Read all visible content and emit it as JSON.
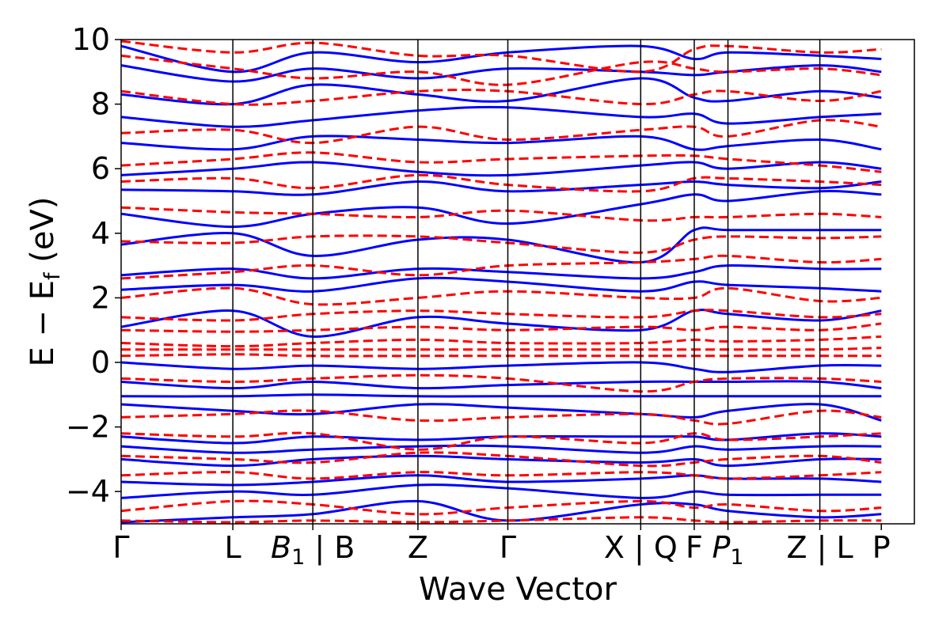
{
  "chart_data": {
    "type": "line",
    "xlabel": "Wave Vector",
    "ylabel_main": "E − E",
    "ylabel_sub": "f",
    "ylabel_unit": " (eV)",
    "ylim": [
      -5,
      10
    ],
    "xlim": [
      0,
      12.0
    ],
    "yticks": [
      -4,
      -2,
      0,
      2,
      4,
      6,
      8,
      10
    ],
    "ytick_labels": [
      "−4",
      "−2",
      "0",
      "2",
      "4",
      "6",
      "8",
      "10"
    ],
    "grid": false,
    "colors": {
      "solid": "#0000ff",
      "dashed": "#ff0000"
    },
    "kpoints": [
      {
        "pos": 0.0,
        "label": "Γ",
        "italic_base": "",
        "sub": ""
      },
      {
        "pos": 1.69,
        "label": "L",
        "italic_base": "",
        "sub": ""
      },
      {
        "pos": 2.9,
        "label": " | B",
        "italic_base": "B",
        "sub": "1"
      },
      {
        "pos": 4.49,
        "label": "Z",
        "italic_base": "",
        "sub": ""
      },
      {
        "pos": 5.85,
        "label": "Γ",
        "italic_base": "",
        "sub": ""
      },
      {
        "pos": 7.86,
        "label": "X | Q",
        "italic_base": "",
        "sub": ""
      },
      {
        "pos": 8.67,
        "label": "F",
        "italic_base": "",
        "sub": ""
      },
      {
        "pos": 9.18,
        "label": "",
        "italic_base": "P",
        "sub": "1"
      },
      {
        "pos": 10.57,
        "label": "Z | L",
        "italic_base": "",
        "sub": ""
      },
      {
        "pos": 11.5,
        "label": "P",
        "italic_base": "",
        "sub": ""
      }
    ],
    "series": [
      {
        "style": "solid",
        "x": [
          0,
          1.69,
          2.9,
          4.49,
          5.85,
          7.86,
          8.67,
          9.18,
          10.57,
          11.5
        ],
        "y": [
          9.8,
          9.0,
          9.6,
          9.3,
          9.6,
          9.8,
          9.4,
          9.6,
          9.5,
          9.4
        ]
      },
      {
        "style": "solid",
        "x": [
          0,
          1.69,
          2.9,
          4.49,
          5.85,
          7.86,
          8.67,
          9.18,
          10.57,
          11.5
        ],
        "y": [
          9.2,
          8.7,
          9.1,
          8.8,
          9.1,
          9.0,
          8.9,
          9.0,
          9.2,
          9.0
        ]
      },
      {
        "style": "solid",
        "x": [
          0,
          1.69,
          2.9,
          4.49,
          5.85,
          7.86,
          8.67,
          9.18,
          10.57,
          11.5
        ],
        "y": [
          8.3,
          8.0,
          8.6,
          8.3,
          8.1,
          8.8,
          8.2,
          8.1,
          8.4,
          8.2
        ]
      },
      {
        "style": "solid",
        "x": [
          0,
          1.69,
          2.9,
          4.49,
          5.85,
          7.86,
          8.67,
          9.18,
          10.57,
          11.5
        ],
        "y": [
          7.6,
          7.3,
          7.5,
          7.8,
          7.9,
          7.6,
          7.7,
          7.4,
          7.6,
          7.7
        ]
      },
      {
        "style": "solid",
        "x": [
          0,
          1.69,
          2.9,
          4.49,
          5.85,
          7.86,
          8.67,
          9.18,
          10.57,
          11.5
        ],
        "y": [
          6.8,
          6.6,
          7.0,
          6.9,
          6.8,
          7.0,
          6.6,
          6.7,
          6.9,
          6.6
        ]
      },
      {
        "style": "solid",
        "x": [
          0,
          1.69,
          2.9,
          4.49,
          5.85,
          7.86,
          8.67,
          9.18,
          10.57,
          11.5
        ],
        "y": [
          5.8,
          6.0,
          6.2,
          5.9,
          5.8,
          6.1,
          6.2,
          6.0,
          6.2,
          6.0
        ]
      },
      {
        "style": "solid",
        "x": [
          0,
          1.69,
          2.9,
          4.49,
          5.85,
          7.86,
          8.67,
          9.18,
          10.57,
          11.5
        ],
        "y": [
          5.35,
          5.3,
          5.2,
          5.6,
          5.3,
          5.5,
          5.6,
          5.5,
          5.4,
          5.6
        ]
      },
      {
        "style": "solid",
        "x": [
          0,
          1.69,
          2.9,
          4.49,
          5.85,
          7.86,
          8.67,
          9.18,
          10.57,
          11.5
        ],
        "y": [
          4.6,
          4.2,
          4.6,
          4.8,
          4.3,
          4.9,
          5.2,
          5.0,
          5.3,
          5.2
        ]
      },
      {
        "style": "solid",
        "x": [
          0,
          1.69,
          2.9,
          4.49,
          5.85,
          7.86,
          8.67,
          9.18,
          10.57,
          11.5
        ],
        "y": [
          3.65,
          4.0,
          3.3,
          3.8,
          3.8,
          3.1,
          4.1,
          4.1,
          4.1,
          4.1
        ]
      },
      {
        "style": "solid",
        "x": [
          0,
          1.69,
          2.9,
          4.49,
          5.85,
          7.86,
          8.67,
          9.18,
          10.57,
          11.5
        ],
        "y": [
          2.7,
          2.9,
          2.6,
          2.9,
          2.8,
          2.6,
          2.8,
          3.0,
          2.9,
          2.9
        ]
      },
      {
        "style": "solid",
        "x": [
          0,
          1.69,
          2.9,
          4.49,
          5.85,
          7.86,
          8.67,
          9.18,
          10.57,
          11.5
        ],
        "y": [
          2.25,
          2.4,
          2.2,
          2.6,
          2.5,
          2.2,
          2.5,
          2.4,
          2.3,
          2.2
        ]
      },
      {
        "style": "solid",
        "x": [
          0,
          1.69,
          2.9,
          4.49,
          5.85,
          7.86,
          8.67,
          9.18,
          10.57,
          11.5
        ],
        "y": [
          1.1,
          1.6,
          0.8,
          1.4,
          1.2,
          1.0,
          1.6,
          1.5,
          1.3,
          1.6
        ]
      },
      {
        "style": "solid",
        "x": [
          0,
          1.69,
          2.9,
          4.49,
          5.85,
          7.86,
          8.67,
          9.18,
          10.57,
          11.5
        ],
        "y": [
          0.0,
          -0.2,
          -0.1,
          -0.2,
          -0.1,
          0.0,
          -0.2,
          -0.3,
          -0.1,
          -0.1
        ]
      },
      {
        "style": "solid",
        "x": [
          0,
          1.69,
          2.9,
          4.49,
          5.85,
          7.86,
          8.67,
          9.18,
          10.57,
          11.5
        ],
        "y": [
          -0.6,
          -0.8,
          -0.6,
          -0.8,
          -0.7,
          -0.6,
          -0.6,
          -0.6,
          -0.6,
          -0.8
        ]
      },
      {
        "style": "solid",
        "x": [
          0,
          1.69,
          2.9,
          4.49,
          5.85,
          7.86,
          8.67,
          9.18,
          10.57,
          11.5
        ],
        "y": [
          -1.05,
          -1.05,
          -1.0,
          -1.05,
          -1.05,
          -1.05,
          -1.05,
          -1.05,
          -1.05,
          -1.05
        ]
      },
      {
        "style": "solid",
        "x": [
          0,
          1.69,
          2.9,
          4.49,
          5.85,
          7.86,
          8.67,
          9.18,
          10.57,
          11.5
        ],
        "y": [
          -1.3,
          -1.5,
          -1.6,
          -1.3,
          -1.4,
          -1.6,
          -1.7,
          -1.5,
          -1.3,
          -1.8
        ]
      },
      {
        "style": "solid",
        "x": [
          0,
          1.69,
          2.9,
          4.49,
          5.85,
          7.86,
          8.67,
          9.18,
          10.57,
          11.5
        ],
        "y": [
          -2.3,
          -2.5,
          -2.3,
          -2.4,
          -2.3,
          -2.3,
          -2.3,
          -2.4,
          -2.2,
          -2.3
        ]
      },
      {
        "style": "solid",
        "x": [
          0,
          1.69,
          2.9,
          4.49,
          5.85,
          7.86,
          8.67,
          9.18,
          10.57,
          11.5
        ],
        "y": [
          -2.6,
          -2.8,
          -2.7,
          -2.6,
          -2.6,
          -2.8,
          -2.6,
          -2.7,
          -2.6,
          -2.6
        ]
      },
      {
        "style": "solid",
        "x": [
          0,
          1.69,
          2.9,
          4.49,
          5.85,
          7.86,
          8.67,
          9.18,
          10.57,
          11.5
        ],
        "y": [
          -3.0,
          -3.2,
          -3.0,
          -2.9,
          -3.0,
          -3.1,
          -3.0,
          -3.2,
          -3.0,
          -3.0
        ]
      },
      {
        "style": "solid",
        "x": [
          0,
          1.69,
          2.9,
          4.49,
          5.85,
          7.86,
          8.67,
          9.18,
          10.57,
          11.5
        ],
        "y": [
          -3.7,
          -3.8,
          -3.7,
          -3.5,
          -3.7,
          -3.6,
          -3.5,
          -3.6,
          -3.6,
          -3.7
        ]
      },
      {
        "style": "solid",
        "x": [
          0,
          1.69,
          2.9,
          4.49,
          5.85,
          7.86,
          8.67,
          9.18,
          10.57,
          11.5
        ],
        "y": [
          -4.2,
          -4.0,
          -4.1,
          -3.8,
          -3.9,
          -4.2,
          -4.0,
          -4.1,
          -4.1,
          -4.1
        ]
      },
      {
        "style": "solid",
        "x": [
          0,
          1.69,
          2.9,
          4.49,
          5.85,
          7.86,
          8.67,
          9.18,
          10.57,
          11.5
        ],
        "y": [
          -4.95,
          -4.8,
          -4.7,
          -4.3,
          -4.9,
          -4.4,
          -4.4,
          -4.6,
          -4.8,
          -4.7
        ]
      },
      {
        "style": "dashed",
        "x": [
          0,
          1.69,
          2.9,
          4.49,
          5.85,
          7.86,
          8.67,
          9.18,
          10.57,
          11.5
        ],
        "y": [
          9.95,
          9.6,
          9.9,
          9.5,
          9.5,
          9.0,
          9.7,
          9.8,
          9.6,
          9.7
        ]
      },
      {
        "style": "dashed",
        "x": [
          0,
          1.69,
          2.9,
          4.49,
          5.85,
          7.86,
          8.67,
          9.18,
          10.57,
          11.5
        ],
        "y": [
          9.5,
          9.1,
          8.8,
          9.0,
          8.6,
          9.3,
          9.1,
          9.0,
          9.1,
          8.9
        ]
      },
      {
        "style": "dashed",
        "x": [
          0,
          1.69,
          2.9,
          4.49,
          5.85,
          7.86,
          8.67,
          9.18,
          10.57,
          11.5
        ],
        "y": [
          8.4,
          8.0,
          8.1,
          8.4,
          8.4,
          8.0,
          8.3,
          8.4,
          8.1,
          8.4
        ]
      },
      {
        "style": "dashed",
        "x": [
          0,
          1.69,
          2.9,
          4.49,
          5.85,
          7.86,
          8.67,
          9.18,
          10.57,
          11.5
        ],
        "y": [
          7.1,
          7.2,
          6.8,
          7.3,
          6.9,
          7.2,
          7.3,
          7.0,
          7.5,
          7.3
        ]
      },
      {
        "style": "dashed",
        "x": [
          0,
          1.69,
          2.9,
          4.49,
          5.85,
          7.86,
          8.67,
          9.18,
          10.57,
          11.5
        ],
        "y": [
          6.1,
          6.3,
          6.5,
          6.2,
          6.3,
          6.4,
          6.4,
          6.3,
          6.1,
          5.9
        ]
      },
      {
        "style": "dashed",
        "x": [
          0,
          1.69,
          2.9,
          4.49,
          5.85,
          7.86,
          8.67,
          9.18,
          10.57,
          11.5
        ],
        "y": [
          5.6,
          5.7,
          5.4,
          5.8,
          5.5,
          5.3,
          5.7,
          5.7,
          5.6,
          5.5
        ]
      },
      {
        "style": "dashed",
        "x": [
          0,
          1.69,
          2.9,
          4.49,
          5.85,
          7.86,
          8.67,
          9.18,
          10.57,
          11.5
        ],
        "y": [
          4.8,
          4.65,
          4.6,
          4.5,
          4.7,
          4.4,
          4.5,
          4.5,
          4.6,
          4.5
        ]
      },
      {
        "style": "dashed",
        "x": [
          0,
          1.69,
          2.9,
          4.49,
          5.85,
          7.86,
          8.67,
          9.18,
          10.57,
          11.5
        ],
        "y": [
          3.75,
          3.7,
          3.9,
          3.9,
          3.7,
          3.4,
          3.8,
          3.9,
          3.85,
          3.9
        ]
      },
      {
        "style": "dashed",
        "x": [
          0,
          1.69,
          2.9,
          4.49,
          5.85,
          7.86,
          8.67,
          9.18,
          10.57,
          11.5
        ],
        "y": [
          2.6,
          2.8,
          3.0,
          2.7,
          3.0,
          3.1,
          3.2,
          3.3,
          3.1,
          3.2
        ]
      },
      {
        "style": "dashed",
        "x": [
          0,
          1.69,
          2.9,
          4.49,
          5.85,
          7.86,
          8.67,
          9.18,
          10.57,
          11.5
        ],
        "y": [
          2.0,
          2.3,
          1.8,
          2.0,
          2.2,
          2.0,
          2.0,
          2.3,
          1.9,
          2.0
        ]
      },
      {
        "style": "dashed",
        "x": [
          0,
          1.69,
          2.9,
          4.49,
          5.85,
          7.86,
          8.67,
          9.18,
          10.57,
          11.5
        ],
        "y": [
          1.4,
          1.3,
          1.5,
          1.6,
          1.5,
          1.4,
          1.6,
          1.6,
          1.4,
          1.5
        ]
      },
      {
        "style": "dashed",
        "x": [
          0,
          1.69,
          2.9,
          4.49,
          5.85,
          7.86,
          8.67,
          9.18,
          10.57,
          11.5
        ],
        "y": [
          1.0,
          0.95,
          1.0,
          1.1,
          1.0,
          1.1,
          1.0,
          1.1,
          1.0,
          1.2
        ]
      },
      {
        "style": "dashed",
        "x": [
          0,
          1.69,
          2.9,
          4.49,
          5.85,
          7.86,
          8.67,
          9.18,
          10.57,
          11.5
        ],
        "y": [
          0.6,
          0.5,
          0.6,
          0.7,
          0.6,
          0.6,
          0.7,
          0.65,
          0.7,
          0.8
        ]
      },
      {
        "style": "dashed",
        "x": [
          0,
          1.69,
          2.9,
          4.49,
          5.85,
          7.86,
          8.67,
          9.18,
          10.57,
          11.5
        ],
        "y": [
          0.4,
          0.4,
          0.4,
          0.4,
          0.4,
          0.4,
          0.4,
          0.4,
          0.4,
          0.45
        ]
      },
      {
        "style": "dashed",
        "x": [
          0,
          1.69,
          2.9,
          4.49,
          5.85,
          7.86,
          8.67,
          9.18,
          10.57,
          11.5
        ],
        "y": [
          0.2,
          0.25,
          0.2,
          0.2,
          0.2,
          0.2,
          0.2,
          0.2,
          0.2,
          0.2
        ]
      },
      {
        "style": "dashed",
        "x": [
          0,
          1.69,
          2.9,
          4.49,
          5.85,
          7.86,
          8.67,
          9.18,
          10.57,
          11.5
        ],
        "y": [
          -0.5,
          -0.6,
          -0.5,
          -0.4,
          -0.5,
          -0.9,
          -0.6,
          -0.5,
          -0.5,
          -0.6
        ]
      },
      {
        "style": "dashed",
        "x": [
          0,
          1.69,
          2.9,
          4.49,
          5.85,
          7.86,
          8.67,
          9.18,
          10.57,
          11.5
        ],
        "y": [
          -1.7,
          -1.6,
          -1.5,
          -1.8,
          -1.7,
          -1.6,
          -1.8,
          -1.9,
          -1.5,
          -1.7
        ]
      },
      {
        "style": "dashed",
        "x": [
          0,
          1.69,
          2.9,
          4.49,
          5.85,
          7.86,
          8.67,
          9.18,
          10.57,
          11.5
        ],
        "y": [
          -2.2,
          -2.3,
          -2.2,
          -2.7,
          -2.3,
          -2.5,
          -2.2,
          -2.4,
          -2.3,
          -2.2
        ]
      },
      {
        "style": "dashed",
        "x": [
          0,
          1.69,
          2.9,
          4.49,
          5.85,
          7.86,
          8.67,
          9.18,
          10.57,
          11.5
        ],
        "y": [
          -2.9,
          -3.0,
          -3.1,
          -2.8,
          -2.9,
          -3.2,
          -3.1,
          -3.0,
          -2.9,
          -3.1
        ]
      },
      {
        "style": "dashed",
        "x": [
          0,
          1.69,
          2.9,
          4.49,
          5.85,
          7.86,
          8.67,
          9.18,
          10.57,
          11.5
        ],
        "y": [
          -3.5,
          -3.4,
          -3.6,
          -3.4,
          -3.5,
          -3.4,
          -3.5,
          -3.6,
          -3.5,
          -3.4
        ]
      },
      {
        "style": "dashed",
        "x": [
          0,
          1.69,
          2.9,
          4.49,
          5.85,
          7.86,
          8.67,
          9.18,
          10.57,
          11.5
        ],
        "y": [
          -4.6,
          -4.3,
          -4.4,
          -4.7,
          -4.5,
          -4.3,
          -4.5,
          -4.4,
          -4.6,
          -4.5
        ]
      },
      {
        "style": "dashed",
        "x": [
          0,
          1.69,
          2.9,
          4.49,
          5.85,
          7.86,
          8.67,
          9.18,
          10.57,
          11.5
        ],
        "y": [
          -4.9,
          -4.95,
          -4.9,
          -4.95,
          -4.9,
          -4.8,
          -4.9,
          -4.95,
          -4.9,
          -4.9
        ]
      }
    ]
  }
}
